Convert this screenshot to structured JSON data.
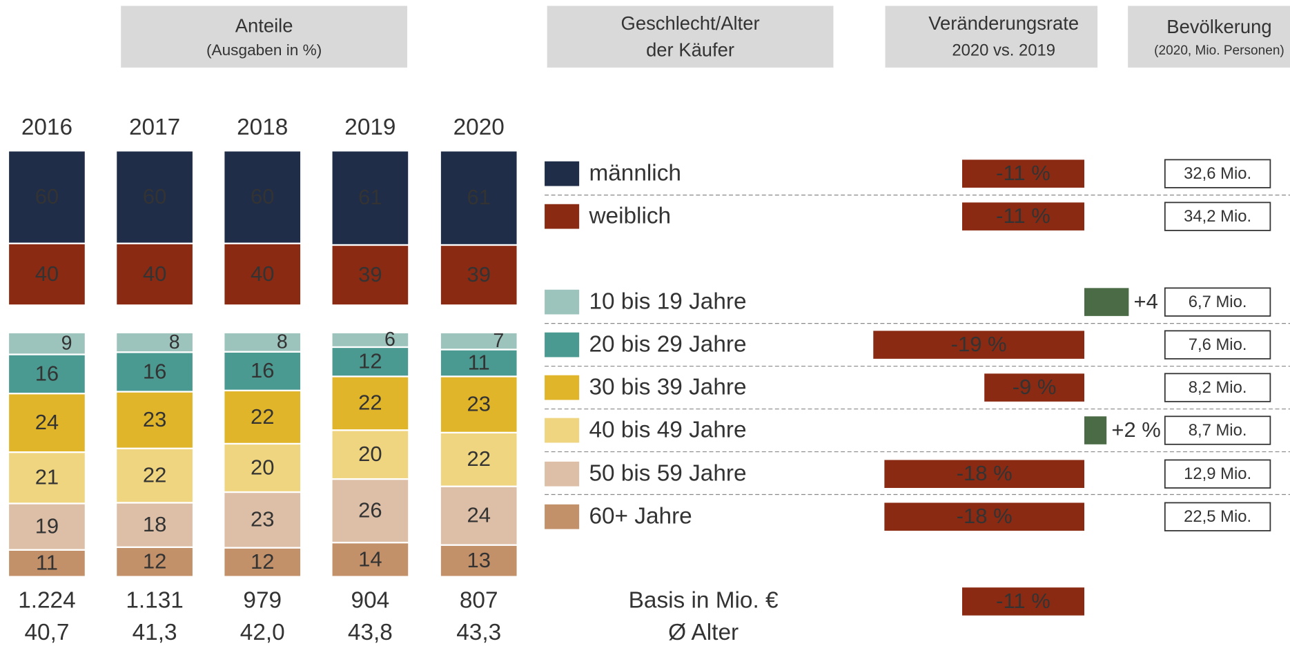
{
  "headers": {
    "shares": "Anteile",
    "shares_sub": "(Ausgaben in %)",
    "buyers": [
      "Geschlecht/Alter",
      "der Käufer"
    ],
    "change": [
      "Veränderungsrate",
      "2020 vs. 2019"
    ],
    "population": "Bevölkerung",
    "population_sub": "(2020, Mio. Personen)"
  },
  "chart_data": [
    {
      "type": "stacked_bar",
      "categories": [
        "2016",
        "2017",
        "2018",
        "2019",
        "2020"
      ],
      "series": [
        {
          "name": "männlich",
          "color": "#1f2d48",
          "values": [
            60,
            60,
            60,
            61,
            61
          ],
          "change": -11,
          "change_label": "-11 %",
          "population": 32.6,
          "population_label": "32,6 Mio."
        },
        {
          "name": "weiblich",
          "color": "#8b2a12",
          "values": [
            40,
            40,
            40,
            39,
            39
          ],
          "change": -11,
          "change_label": "-11 %",
          "population": 34.2,
          "population_label": "34,2 Mio."
        }
      ]
    },
    {
      "type": "stacked_bar",
      "categories": [
        "2016",
        "2017",
        "2018",
        "2019",
        "2020"
      ],
      "series": [
        {
          "name": "10 bis 19 Jahre",
          "color": "#9dc3bd",
          "values": [
            9,
            8,
            8,
            6,
            7
          ],
          "change": 4,
          "change_label": "+4 %",
          "population": 6.7,
          "population_label": "6,7 Mio."
        },
        {
          "name": "20 bis 29 Jahre",
          "color": "#4a9a91",
          "values": [
            16,
            16,
            16,
            12,
            11
          ],
          "change": -19,
          "change_label": "-19 %",
          "population": 7.6,
          "population_label": "7,6 Mio."
        },
        {
          "name": "30 bis 39 Jahre",
          "color": "#e0b52a",
          "values": [
            24,
            23,
            22,
            22,
            23
          ],
          "change": -9,
          "change_label": "-9 %",
          "population": 8.2,
          "population_label": "8,2 Mio."
        },
        {
          "name": "40 bis 49 Jahre",
          "color": "#efd57f",
          "values": [
            21,
            22,
            20,
            20,
            22
          ],
          "change": 2,
          "change_label": "+2 %",
          "population": 8.7,
          "population_label": "8,7 Mio."
        },
        {
          "name": "50 bis 59 Jahre",
          "color": "#dcbfa6",
          "values": [
            19,
            18,
            23,
            26,
            24
          ],
          "change": -18,
          "change_label": "-18 %",
          "population": 12.9,
          "population_label": "12,9 Mio."
        },
        {
          "name": "60+ Jahre",
          "color": "#c39169",
          "values": [
            11,
            12,
            12,
            14,
            13
          ],
          "change": -18,
          "change_label": "-18 %",
          "population": 22.5,
          "population_label": "22,5 Mio."
        }
      ]
    }
  ],
  "totals": {
    "label": "Basis in Mio. €",
    "values": [
      1224,
      1131,
      979,
      904,
      807
    ],
    "value_labels": [
      "1.224",
      "1.131",
      "979",
      "904",
      "807"
    ],
    "change": -11,
    "change_label": "-11 %"
  },
  "avg_age": {
    "label": "Ø Alter",
    "values": [
      40.7,
      41.3,
      42.0,
      43.8,
      43.3
    ],
    "value_labels": [
      "40,7",
      "41,3",
      "42,0",
      "43,8",
      "43,3"
    ]
  }
}
